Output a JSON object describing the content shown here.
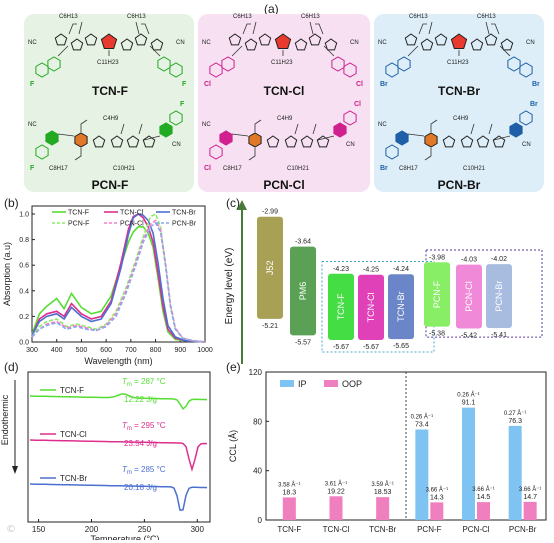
{
  "panels": {
    "a": "(a)",
    "b": "(b)",
    "c": "(c)",
    "d": "(d)",
    "e": "(e)"
  },
  "molecules": {
    "row1": [
      "TCN-F",
      "TCN-Cl",
      "TCN-Br"
    ],
    "row2": [
      "PCN-F",
      "PCN-Cl",
      "PCN-Br"
    ],
    "box_colors": [
      "#e6f2e3",
      "#f6e0f1",
      "#ddeef8"
    ],
    "accent_colors": [
      "#22aa22",
      "#d0208e",
      "#1f5fa8"
    ],
    "halogen_labels": [
      "F",
      "Cl",
      "Br"
    ],
    "core_labels": [
      "C4H9",
      "C6H13",
      "C8H17",
      "C10H21",
      "C11H23",
      "S",
      "N",
      "O",
      "CN",
      "NC"
    ]
  },
  "absorption": {
    "chart_data": {
      "type": "line",
      "ylabel": "Absorption (a.u)",
      "xlabel": "Wavelength (nm)",
      "xlim": [
        300,
        1000
      ],
      "xticks": [
        300,
        400,
        500,
        600,
        700,
        800,
        900,
        1000
      ],
      "ylim": [
        0,
        1.0
      ],
      "yticks": [
        "0.0",
        "0.2",
        "0.4",
        "0.6",
        "0.8",
        "1.0"
      ],
      "legend": [
        "TCN-F",
        "TCN-Cl",
        "TCN-Br",
        "PCN-F",
        "PCN-Cl",
        "PCN-Br"
      ],
      "series": [
        {
          "name": "TCN-F",
          "color": "#55dd33",
          "dash": false,
          "x": [
            300,
            330,
            360,
            400,
            430,
            460,
            500,
            540,
            580,
            620,
            660,
            690,
            710,
            730,
            750,
            770,
            790,
            810,
            830,
            850,
            880,
            920,
            1000
          ],
          "y": [
            0.06,
            0.22,
            0.28,
            0.34,
            0.26,
            0.38,
            0.27,
            0.22,
            0.24,
            0.36,
            0.6,
            0.78,
            0.86,
            0.9,
            0.9,
            0.85,
            0.74,
            0.5,
            0.24,
            0.08,
            0.02,
            0.01,
            0.0
          ]
        },
        {
          "name": "TCN-Cl",
          "color": "#dd2e8e",
          "dash": false,
          "x": [
            300,
            330,
            360,
            400,
            430,
            460,
            500,
            540,
            580,
            620,
            660,
            690,
            710,
            730,
            750,
            770,
            790,
            810,
            830,
            850,
            880,
            920,
            1000
          ],
          "y": [
            0.05,
            0.18,
            0.22,
            0.24,
            0.2,
            0.3,
            0.22,
            0.18,
            0.2,
            0.32,
            0.62,
            0.88,
            0.98,
            1.0,
            0.97,
            0.9,
            0.78,
            0.54,
            0.28,
            0.1,
            0.03,
            0.01,
            0.0
          ]
        },
        {
          "name": "TCN-Br",
          "color": "#4c6fd0",
          "dash": false,
          "x": [
            300,
            330,
            360,
            400,
            430,
            460,
            500,
            540,
            580,
            620,
            660,
            690,
            710,
            730,
            750,
            770,
            790,
            810,
            830,
            850,
            880,
            920,
            1000
          ],
          "y": [
            0.05,
            0.16,
            0.2,
            0.22,
            0.18,
            0.27,
            0.2,
            0.16,
            0.18,
            0.3,
            0.58,
            0.84,
            0.97,
            1.0,
            0.99,
            0.95,
            0.85,
            0.62,
            0.34,
            0.13,
            0.04,
            0.01,
            0.0
          ]
        },
        {
          "name": "PCN-F",
          "color": "#88ee66",
          "dash": true,
          "x": [
            300,
            330,
            360,
            400,
            440,
            480,
            520,
            560,
            600,
            640,
            680,
            720,
            750,
            780,
            800,
            820,
            840,
            860,
            880,
            910,
            950,
            1000
          ],
          "y": [
            0.04,
            0.12,
            0.16,
            0.18,
            0.12,
            0.14,
            0.12,
            0.1,
            0.14,
            0.24,
            0.42,
            0.64,
            0.82,
            0.98,
            1.0,
            0.9,
            0.6,
            0.28,
            0.1,
            0.03,
            0.01,
            0.0
          ]
        },
        {
          "name": "PCN-Cl",
          "color": "#ff7ac8",
          "dash": true,
          "x": [
            300,
            330,
            360,
            400,
            440,
            480,
            520,
            560,
            600,
            640,
            680,
            720,
            750,
            780,
            800,
            820,
            840,
            860,
            880,
            910,
            950,
            1000
          ],
          "y": [
            0.04,
            0.1,
            0.14,
            0.16,
            0.11,
            0.13,
            0.11,
            0.09,
            0.13,
            0.22,
            0.4,
            0.62,
            0.8,
            0.92,
            0.95,
            0.88,
            0.62,
            0.3,
            0.11,
            0.03,
            0.01,
            0.0
          ]
        },
        {
          "name": "PCN-Br",
          "color": "#8aa8f0",
          "dash": true,
          "x": [
            300,
            330,
            360,
            400,
            440,
            480,
            520,
            560,
            600,
            640,
            680,
            720,
            750,
            780,
            800,
            820,
            840,
            860,
            880,
            910,
            950,
            1000
          ],
          "y": [
            0.04,
            0.1,
            0.13,
            0.15,
            0.1,
            0.12,
            0.1,
            0.09,
            0.12,
            0.2,
            0.38,
            0.6,
            0.78,
            0.9,
            0.93,
            0.86,
            0.6,
            0.28,
            0.1,
            0.03,
            0.01,
            0.0
          ]
        }
      ]
    }
  },
  "energy": {
    "ylabel": "Energy level (eV)",
    "materials": [
      {
        "name": "J52",
        "lumo": "-2.99",
        "homo": "-5.21",
        "color": "#a8a055",
        "lumo_v": -2.99,
        "homo_v": -5.21
      },
      {
        "name": "PM6",
        "lumo": "-3.64",
        "homo": "-5.57",
        "color": "#5aa055",
        "lumo_v": -3.64,
        "homo_v": -5.57
      },
      {
        "name": "TCN-F",
        "lumo": "-4.23",
        "homo": "-5.67",
        "color": "#44dd44",
        "lumo_v": -4.23,
        "homo_v": -5.67
      },
      {
        "name": "TCN-Cl",
        "lumo": "-4.25",
        "homo": "-5.67",
        "color": "#e040b8",
        "lumo_v": -4.25,
        "homo_v": -5.67
      },
      {
        "name": "TCN-Br",
        "lumo": "-4.24",
        "homo": "-5.65",
        "color": "#6a86c8",
        "lumo_v": -4.24,
        "homo_v": -5.65
      },
      {
        "name": "PCN-F",
        "lumo": "-3.98",
        "homo": "-5.38",
        "color": "#88ee66",
        "lumo_v": -3.98,
        "homo_v": -5.38
      },
      {
        "name": "PCN-Cl",
        "lumo": "-4.03",
        "homo": "-5.42",
        "color": "#f08ad8",
        "lumo_v": -4.03,
        "homo_v": -5.42
      },
      {
        "name": "PCN-Br",
        "lumo": "-4.02",
        "homo": "-5.41",
        "color": "#a8bce0",
        "lumo_v": -4.02,
        "homo_v": -5.41
      }
    ]
  },
  "dsc": {
    "ylabel": "Endothermic",
    "xlabel": "Temperature (°C)",
    "xticks": [
      "150",
      "200",
      "250",
      "300"
    ],
    "curves": [
      {
        "name": "TCN-F",
        "color": "#55dd33",
        "tm": "T_m = 287 °C",
        "tm_sym": "T",
        "tm_sub": "m",
        "tm_val": " = 287 °C",
        "enthalpy": "12.22 J/g"
      },
      {
        "name": "TCN-Cl",
        "color": "#dd2e8e",
        "tm": "T_m = 295 °C",
        "tm_sym": "T",
        "tm_sub": "m",
        "tm_val": " = 295 °C",
        "enthalpy": "23.54 J/g"
      },
      {
        "name": "TCN-Br",
        "color": "#4c6fd0",
        "tm": "T_m = 285 °C",
        "tm_sym": "T",
        "tm_sub": "m",
        "tm_val": " = 285 °C",
        "enthalpy": "20.18 J/g"
      }
    ]
  },
  "ccl": {
    "chart_data": {
      "type": "bar",
      "ylabel": "CCL (Å)",
      "ylim": [
        0,
        120
      ],
      "yticks": [
        "0",
        "40",
        "80",
        "120"
      ],
      "legend": [
        "IP",
        "OOP"
      ],
      "colors": {
        "IP": "#7ec3f2",
        "OOP": "#f07fc0"
      },
      "categories": [
        "TCN-F",
        "TCN-Cl",
        "TCN-Br",
        "PCN-F",
        "PCN-Cl",
        "PCN-Br"
      ],
      "series": [
        {
          "name": "IP",
          "values": [
            null,
            null,
            null,
            73.4,
            91.1,
            76.3
          ],
          "labels": [
            "",
            "",
            "",
            "73.4",
            "91.1",
            "76.3"
          ],
          "dlabels": [
            "",
            "",
            "",
            "0.26 Å⁻¹",
            "0.26 Å⁻¹",
            "0.27 Å⁻¹"
          ]
        },
        {
          "name": "OOP",
          "values": [
            18.3,
            19.22,
            18.53,
            14.3,
            14.5,
            14.7
          ],
          "labels": [
            "18.3",
            "19.22",
            "18.53",
            "14.3",
            "14.5",
            "14.7"
          ],
          "dlabels": [
            "3.58 Å⁻¹",
            "3.61 Å⁻¹",
            "3.59 Å⁻¹",
            "3.66 Å⁻¹",
            "3.66 Å⁻¹",
            "3.66 Å⁻¹"
          ]
        }
      ]
    }
  },
  "watermark": "©"
}
